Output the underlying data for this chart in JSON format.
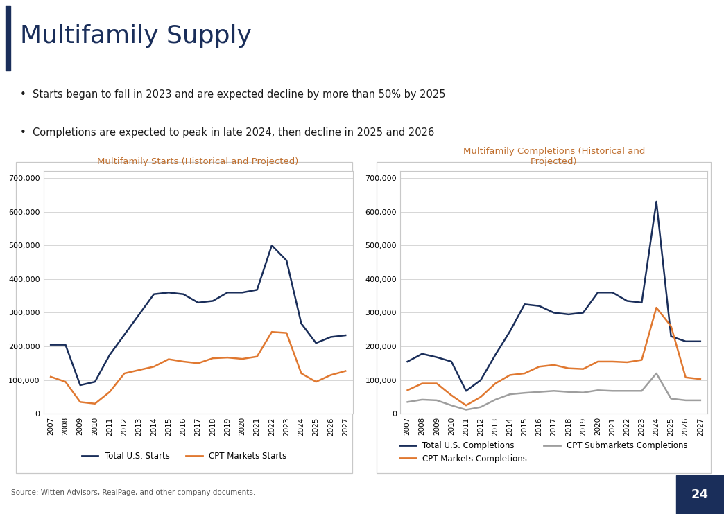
{
  "title": "Multifamily Supply",
  "bullet1": "Starts began to fall in 2023 and are expected decline by more than 50% by 2025",
  "bullet2": "Completions are expected to peak in late 2024, then decline in 2025 and 2026",
  "source": "Source: Witten Advisors, RealPage, and other company documents.",
  "page_num": "24",
  "background_color": "#ffffff",
  "title_color": "#1a2e5a",
  "accent_bar_color": "#1a2e5a",
  "bullet_color": "#1a1a1a",
  "chart_title_color": "#c07030",
  "years": [
    2007,
    2008,
    2009,
    2010,
    2011,
    2012,
    2013,
    2014,
    2015,
    2016,
    2017,
    2018,
    2019,
    2020,
    2021,
    2022,
    2023,
    2024,
    2025,
    2026,
    2027
  ],
  "starts_us": [
    205000,
    205000,
    85000,
    95000,
    175000,
    235000,
    295000,
    355000,
    360000,
    355000,
    330000,
    335000,
    360000,
    360000,
    368000,
    500000,
    455000,
    268000,
    210000,
    228000,
    233000
  ],
  "starts_cpt": [
    110000,
    95000,
    35000,
    30000,
    65000,
    120000,
    130000,
    140000,
    162000,
    155000,
    150000,
    165000,
    167000,
    163000,
    170000,
    243000,
    240000,
    120000,
    95000,
    115000,
    127000
  ],
  "completions_us": [
    155000,
    178000,
    168000,
    155000,
    68000,
    100000,
    175000,
    245000,
    325000,
    320000,
    300000,
    295000,
    300000,
    360000,
    360000,
    335000,
    330000,
    630000,
    230000,
    215000,
    215000
  ],
  "completions_cpt": [
    70000,
    90000,
    90000,
    55000,
    25000,
    50000,
    90000,
    115000,
    120000,
    140000,
    145000,
    135000,
    133000,
    155000,
    155000,
    153000,
    160000,
    315000,
    260000,
    108000,
    103000
  ],
  "completions_sub": [
    35000,
    42000,
    40000,
    25000,
    12000,
    20000,
    42000,
    58000,
    62000,
    65000,
    68000,
    65000,
    63000,
    70000,
    68000,
    68000,
    68000,
    120000,
    45000,
    40000,
    40000
  ],
  "navy": "#1a2e5a",
  "orange": "#e07830",
  "gray": "#9e9e9e",
  "grid_color": "#d0d0d0",
  "border_color": "#c8c8c8",
  "legend_starts_us": "Total U.S. Starts",
  "legend_starts_cpt": "CPT Markets Starts",
  "legend_comp_us": "Total U.S. Completions",
  "legend_comp_cpt": "CPT Markets Completions",
  "legend_comp_sub": "CPT Submarkets Completions",
  "chart1_title": "Multifamily Starts (Historical and Projected)",
  "chart2_title": "Multifamily Completions (Historical and\nProjected)",
  "ylim": [
    0,
    720000
  ],
  "yticks": [
    0,
    100000,
    200000,
    300000,
    400000,
    500000,
    600000,
    700000
  ]
}
